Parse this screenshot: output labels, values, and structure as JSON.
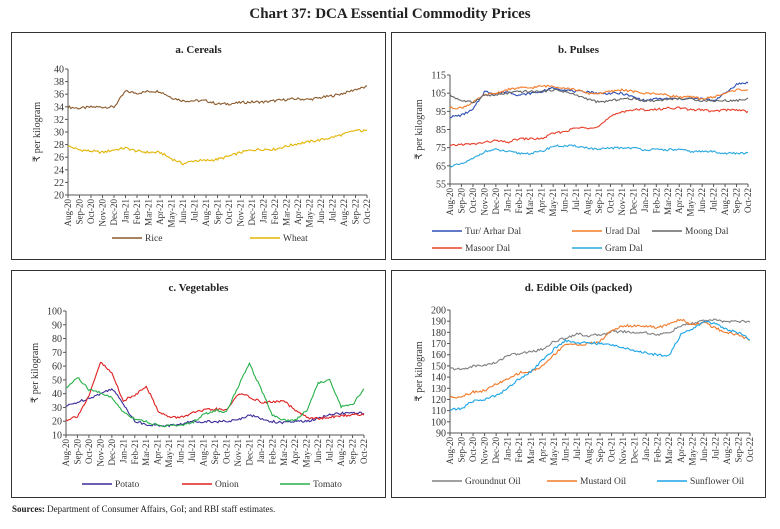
{
  "title": "Chart 37: DCA Essential Commodity Prices",
  "sources_label": "Sources:",
  "sources_text": "Department of Consumer Affairs, GoI; and RBI staff estimates.",
  "chart_data": [
    {
      "type": "line",
      "title": "a. Cereals",
      "ylabel": "₹ per kilogram",
      "ylim": [
        20,
        40
      ],
      "yticks": [
        20,
        22,
        24,
        26,
        28,
        30,
        32,
        34,
        36,
        38,
        40
      ],
      "categories": [
        "Aug-20",
        "Sep-20",
        "Oct-20",
        "Nov-20",
        "Dec-20",
        "Jan-21",
        "Feb-21",
        "Mar-21",
        "Apr-21",
        "May-21",
        "Jun-21",
        "Jul-21",
        "Aug-21",
        "Sep-21",
        "Oct-21",
        "Nov-21",
        "Dec-21",
        "Jan-22",
        "Feb-22",
        "Mar-22",
        "Apr-22",
        "May-22",
        "Jun-22",
        "Jul-22",
        "Aug-22",
        "Sep-22",
        "Oct-22"
      ],
      "legend": "bottom",
      "series": [
        {
          "name": "Rice",
          "color": "#8B5A2B",
          "values": [
            34,
            33.8,
            34,
            34,
            34,
            36.5,
            36.2,
            36.5,
            36.5,
            35.5,
            35,
            35,
            35,
            34.5,
            34.5,
            34.7,
            34.8,
            34.8,
            35,
            35.2,
            35.3,
            35.2,
            35.5,
            35.8,
            36.2,
            36.8,
            37.2
          ]
        },
        {
          "name": "Wheat",
          "color": "#E3B505",
          "values": [
            27.8,
            27.2,
            27,
            26.8,
            27.2,
            27.5,
            27,
            26.8,
            26.8,
            25.8,
            25,
            25.5,
            25.5,
            25.7,
            26.2,
            26.8,
            27.2,
            27.3,
            27.3,
            27.8,
            28.2,
            28.5,
            28.8,
            29.2,
            29.7,
            30.3,
            30.2
          ]
        }
      ]
    },
    {
      "type": "line",
      "title": "b. Pulses",
      "ylabel": "₹ per kilogram",
      "ylim": [
        55,
        115
      ],
      "yticks": [
        55,
        65,
        75,
        85,
        95,
        105,
        115
      ],
      "categories": [
        "Aug-20",
        "Sep-20",
        "Oct-20",
        "Nov-20",
        "Dec-20",
        "Jan-21",
        "Feb-21",
        "Mar-21",
        "Apr-21",
        "May-21",
        "Jun-21",
        "Jul-21",
        "Aug-21",
        "Sep-21",
        "Oct-21",
        "Nov-21",
        "Dec-21",
        "Jan-22",
        "Feb-22",
        "Mar-22",
        "Apr-22",
        "May-22",
        "Jun-22",
        "Jul-22",
        "Aug-22",
        "Sep-22",
        "Oct-22"
      ],
      "legend": "bottom",
      "series": [
        {
          "name": "Tur/ Arhar Dal",
          "color": "#2E4FB5",
          "values": [
            92,
            93,
            96,
            106,
            105,
            106,
            104,
            105,
            106,
            108,
            107,
            106,
            106,
            105,
            105,
            105,
            103,
            101,
            102,
            102,
            102,
            102,
            102,
            101,
            105,
            110,
            111
          ]
        },
        {
          "name": "Urad Dal",
          "color": "#F47C2A",
          "values": [
            97,
            97,
            100,
            104,
            105,
            107,
            108,
            108,
            109,
            109,
            108,
            107,
            105,
            105,
            106,
            107,
            106,
            105,
            105,
            104,
            103,
            103,
            102,
            103,
            105,
            107,
            107
          ]
        },
        {
          "name": "Moong Dal",
          "color": "#666666",
          "values": [
            104,
            101,
            100,
            104,
            104,
            105,
            106,
            106,
            106,
            107,
            106,
            104,
            102,
            100,
            101,
            102,
            102,
            101,
            101,
            102,
            102,
            102,
            101,
            101,
            101,
            101,
            102
          ]
        },
        {
          "name": "Masoor Dal",
          "color": "#E8402A",
          "values": [
            76,
            77,
            77,
            78,
            79,
            78,
            80,
            80,
            80,
            83,
            84,
            86,
            86,
            87,
            92,
            95,
            96,
            96,
            96,
            97,
            97,
            96,
            96,
            95,
            96,
            96,
            95
          ]
        },
        {
          "name": "Gram Dal",
          "color": "#29A8E0",
          "values": [
            65,
            66,
            69,
            73,
            74,
            73,
            72,
            72,
            73,
            76,
            76,
            76,
            75,
            74,
            75,
            75,
            75,
            74,
            74,
            74,
            74,
            73,
            73,
            73,
            72,
            72,
            72
          ]
        }
      ]
    },
    {
      "type": "line",
      "title": "c. Vegetables",
      "ylabel": "₹ per kilogram",
      "ylim": [
        10,
        100
      ],
      "yticks": [
        10,
        20,
        30,
        40,
        50,
        60,
        70,
        80,
        90,
        100
      ],
      "categories": [
        "Aug-20",
        "Sep-20",
        "Oct-20",
        "Nov-20",
        "Dec-20",
        "Jan-21",
        "Feb-21",
        "Mar-21",
        "Apr-21",
        "May-21",
        "Jun-21",
        "Jul-21",
        "Aug-21",
        "Sep-21",
        "Oct-21",
        "Nov-21",
        "Dec-21",
        "Jan-22",
        "Feb-22",
        "Mar-22",
        "Apr-22",
        "May-22",
        "Jun-22",
        "Jul-22",
        "Aug-22",
        "Sep-22",
        "Oct-22"
      ],
      "legend": "bottom",
      "series": [
        {
          "name": "Potato",
          "color": "#3B2C9A",
          "values": [
            31,
            34,
            37,
            40,
            44,
            33,
            20,
            18,
            17,
            17,
            18,
            20,
            20,
            20,
            20,
            21,
            25,
            22,
            20,
            19,
            20,
            20,
            22,
            25,
            26,
            26,
            26
          ]
        },
        {
          "name": "Onion",
          "color": "#E02020",
          "values": [
            21,
            24,
            38,
            63,
            55,
            35,
            39,
            46,
            28,
            23,
            23,
            26,
            28,
            29,
            28,
            40,
            38,
            34,
            34,
            35,
            28,
            23,
            22,
            23,
            24,
            25,
            25
          ]
        },
        {
          "name": "Tomato",
          "color": "#28B04A",
          "values": [
            44,
            52,
            43,
            41,
            37,
            27,
            22,
            20,
            17,
            17,
            17,
            19,
            25,
            28,
            27,
            45,
            62,
            44,
            25,
            21,
            21,
            28,
            48,
            50,
            31,
            32,
            44
          ]
        }
      ]
    },
    {
      "type": "line",
      "title": "d. Edible Oils (packed)",
      "ylabel": "₹ per kilogram",
      "ylim": [
        90,
        200
      ],
      "yticks": [
        90,
        100,
        110,
        120,
        130,
        140,
        150,
        160,
        170,
        180,
        190,
        200
      ],
      "categories": [
        "Aug-20",
        "Sep-20",
        "Oct-20",
        "Nov-20",
        "Dec-20",
        "Jan-21",
        "Feb-21",
        "Mar-21",
        "Apr-21",
        "May-21",
        "Jun-21",
        "Jul-21",
        "Aug-21",
        "Sep-21",
        "Oct-21",
        "Nov-21",
        "Dec-21",
        "Jan-22",
        "Feb-22",
        "Mar-22",
        "Apr-22",
        "May-22",
        "Jun-22",
        "Jul-22",
        "Aug-22",
        "Sep-22",
        "Oct-22"
      ],
      "legend": "bottom",
      "series": [
        {
          "name": "Groundnut Oil",
          "color": "#808080",
          "values": [
            148,
            147,
            150,
            151,
            153,
            160,
            161,
            163,
            165,
            172,
            175,
            179,
            177,
            178,
            181,
            181,
            180,
            180,
            178,
            180,
            186,
            188,
            191,
            191,
            190,
            190,
            190
          ]
        },
        {
          "name": "Mustard Oil",
          "color": "#F07A2A",
          "values": [
            122,
            123,
            127,
            128,
            134,
            138,
            144,
            145,
            150,
            160,
            170,
            169,
            170,
            172,
            182,
            186,
            186,
            186,
            184,
            188,
            192,
            187,
            189,
            184,
            180,
            178,
            173
          ]
        },
        {
          "name": "Sunflower Oil",
          "color": "#1CA4E8",
          "values": [
            111,
            112,
            119,
            120,
            124,
            130,
            139,
            145,
            155,
            165,
            173,
            171,
            171,
            170,
            169,
            167,
            163,
            162,
            160,
            160,
            178,
            183,
            190,
            188,
            183,
            180,
            174
          ]
        }
      ]
    }
  ]
}
